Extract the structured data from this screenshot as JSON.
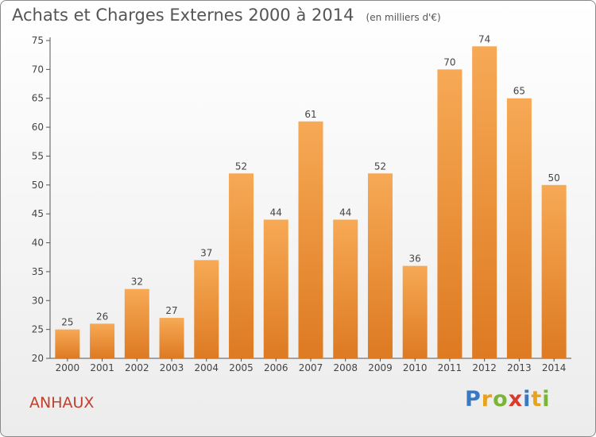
{
  "title": "Achats et Charges Externes 2000 à 2014",
  "unit_note": "(en milliers d'€)",
  "commune": "ANHAUX",
  "logo": {
    "text": "Proxiti",
    "letters": [
      {
        "ch": "P",
        "color": "#3a78c2"
      },
      {
        "ch": "r",
        "color": "#e8a21c"
      },
      {
        "ch": "o",
        "color": "#7ab53a"
      },
      {
        "ch": "x",
        "color": "#d93a2b"
      },
      {
        "ch": "i",
        "color": "#3a78c2"
      },
      {
        "ch": "t",
        "color": "#e8a21c"
      },
      {
        "ch": "i",
        "color": "#7ab53a"
      }
    ]
  },
  "chart_data": {
    "type": "bar",
    "title": "Achats et Charges Externes 2000 à 2014",
    "subtitle": "(en milliers d'€)",
    "categories": [
      "2000",
      "2001",
      "2002",
      "2003",
      "2004",
      "2005",
      "2006",
      "2007",
      "2008",
      "2009",
      "2010",
      "2011",
      "2012",
      "2013",
      "2014"
    ],
    "values": [
      25,
      26,
      32,
      27,
      37,
      52,
      44,
      61,
      44,
      52,
      36,
      70,
      74,
      65,
      50
    ],
    "ylim": [
      20,
      75
    ],
    "yticks": [
      20,
      25,
      30,
      35,
      40,
      45,
      50,
      55,
      60,
      65,
      70,
      75
    ],
    "xlabel": "",
    "ylabel": "",
    "grid": false,
    "bar_color_top": "#f7a955",
    "bar_color_bottom": "#dd7a22",
    "data_labels": true
  }
}
